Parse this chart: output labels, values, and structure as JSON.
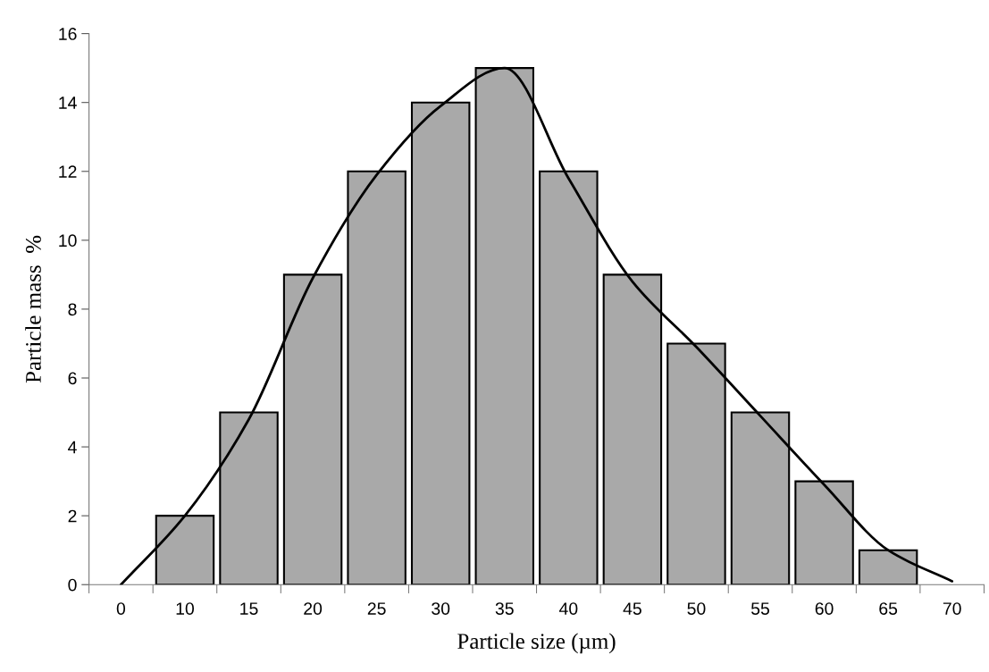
{
  "chart_data": {
    "type": "bar",
    "xlabel": "Particle size (µm)",
    "ylabel": "Particle mass  %",
    "categories": [
      "0",
      "10",
      "15",
      "20",
      "25",
      "30",
      "35",
      "40",
      "45",
      "50",
      "55",
      "60",
      "65",
      "70"
    ],
    "series": [
      {
        "color": "#a9a9a9",
        "values": [
          null,
          2,
          5,
          9,
          12,
          14,
          15,
          12,
          9,
          7,
          5,
          3,
          1,
          null
        ]
      },
      {
        "type": "line",
        "color": "#000000",
        "values": [
          0,
          2.0,
          4.8,
          8.9,
          11.9,
          13.9,
          15.0,
          11.8,
          8.8,
          6.9,
          4.9,
          2.9,
          1.0,
          0.1
        ]
      }
    ],
    "ylim": [
      0,
      16
    ],
    "yticks": [
      0,
      2,
      4,
      6,
      8,
      10,
      12,
      14,
      16
    ],
    "grid": false,
    "legend": false,
    "marker": "none",
    "line_style": "solid"
  }
}
